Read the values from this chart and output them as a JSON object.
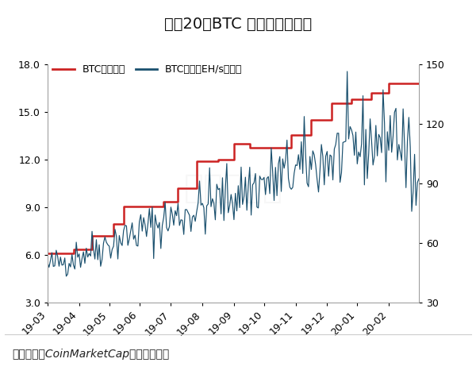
{
  "title": "图表20：BTC 算力和挖矿难度",
  "title_fontsize": 14,
  "legend_labels": [
    "BTC挖矿难度",
    "BTC算力（EH/s，右）"
  ],
  "difficulty_color": "#cc2222",
  "hashrate_color": "#1a506e",
  "ylim_left": [
    3.0,
    18.0
  ],
  "ylim_right": [
    30,
    150
  ],
  "yticks_left": [
    3.0,
    6.0,
    9.0,
    12.0,
    15.0,
    18.0
  ],
  "yticks_right": [
    30,
    60,
    90,
    120,
    150
  ],
  "xtick_labels": [
    "19-03",
    "19-04",
    "19-05",
    "19-06",
    "19-07",
    "19-08",
    "19-09",
    "19-10",
    "19-11",
    "19-12",
    "20-01",
    "20-02"
  ],
  "footer_text": "资料来源：CoinMarketCap，通证通研究",
  "background_color": "#ffffff",
  "footer_bg_color": "#f2f2ee",
  "difficulty_data": [
    6.07,
    6.07,
    6.07,
    6.07,
    6.07,
    6.07,
    6.07,
    6.07,
    6.07,
    6.07,
    6.07,
    6.07,
    6.07,
    6.07,
    6.07,
    6.07,
    6.07,
    6.07,
    6.35,
    6.35,
    6.35,
    6.35,
    6.35,
    6.35,
    6.35,
    6.35,
    6.35,
    6.35,
    6.35,
    6.35,
    6.35,
    7.18,
    7.18,
    7.18,
    7.18,
    7.18,
    7.18,
    7.18,
    7.18,
    7.18,
    7.18,
    7.18,
    7.18,
    7.18,
    7.18,
    7.18,
    7.93,
    7.93,
    7.93,
    7.93,
    7.93,
    7.93,
    7.93,
    9.06,
    9.06,
    9.06,
    9.06,
    9.06,
    9.06,
    9.06,
    9.06,
    9.06,
    9.06,
    9.06,
    9.06,
    9.06,
    9.06,
    9.06,
    9.06,
    9.06,
    9.06,
    9.06,
    9.06,
    9.06,
    9.06,
    9.06,
    9.06,
    9.06,
    9.06,
    9.06,
    9.06,
    9.35,
    9.35,
    9.35,
    9.35,
    9.35,
    9.35,
    9.35,
    9.35,
    9.35,
    9.35,
    10.18,
    10.18,
    10.18,
    10.18,
    10.18,
    10.18,
    10.18,
    10.18,
    10.18,
    10.18,
    10.18,
    10.18,
    10.18,
    11.89,
    11.89,
    11.89,
    11.89,
    11.89,
    11.89,
    11.89,
    11.89,
    11.89,
    11.89,
    11.89,
    11.89,
    11.89,
    11.89,
    11.89,
    12.0,
    12.0,
    12.0,
    12.0,
    12.0,
    12.0,
    12.0,
    12.0,
    12.0,
    12.0,
    12.0,
    13.0,
    13.0,
    13.0,
    13.0,
    13.0,
    13.0,
    13.0,
    13.0,
    13.0,
    13.0,
    13.0,
    12.72,
    12.72,
    12.72,
    12.72,
    12.72,
    12.72,
    12.72,
    12.72,
    12.72,
    12.72,
    12.72,
    12.72,
    12.72,
    12.72,
    12.72,
    12.72,
    12.72,
    12.72,
    12.72,
    12.72,
    12.72,
    12.72,
    12.72,
    12.72,
    12.72,
    12.72,
    12.72,
    12.72,
    12.72,
    13.55,
    13.55,
    13.55,
    13.55,
    13.55,
    13.55,
    13.55,
    13.55,
    13.55,
    13.55,
    13.55,
    13.55,
    13.55,
    13.55,
    14.5,
    14.5,
    14.5,
    14.5,
    14.5,
    14.5,
    14.5,
    14.5,
    14.5,
    14.5,
    14.5,
    14.5,
    14.5,
    14.5,
    15.55,
    15.55,
    15.55,
    15.55,
    15.55,
    15.55,
    15.55,
    15.55,
    15.55,
    15.55,
    15.55,
    15.55,
    15.55,
    15.55,
    15.78,
    15.78,
    15.78,
    15.78,
    15.78,
    15.78,
    15.78,
    15.78,
    15.78,
    15.78,
    15.78,
    15.78,
    15.78,
    15.78,
    16.2,
    16.2,
    16.2,
    16.2,
    16.2,
    16.2,
    16.2,
    16.2,
    16.2,
    16.2,
    16.2,
    16.2,
    16.78,
    16.78,
    16.78,
    16.78,
    16.78,
    16.78,
    16.78,
    16.78,
    16.78,
    16.78,
    16.78,
    16.78,
    16.78,
    16.78,
    16.78,
    16.78,
    16.78,
    16.78,
    16.78,
    16.78,
    16.78,
    16.78
  ],
  "hashrate_data_seed": 42,
  "month_positions": [
    0,
    22,
    43,
    64,
    86,
    108,
    130,
    151,
    173,
    195,
    216,
    238
  ]
}
